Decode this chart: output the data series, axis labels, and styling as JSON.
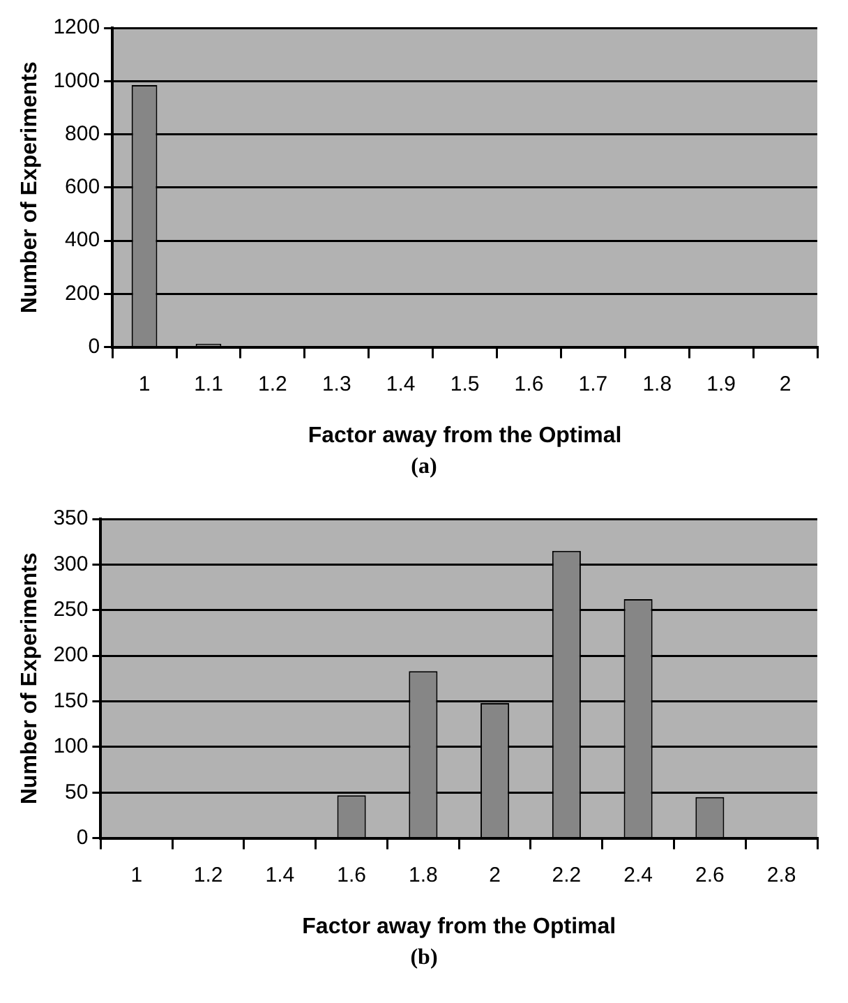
{
  "chart_data": [
    {
      "type": "bar",
      "xlabel": "Factor away from the Optimal",
      "ylabel": "Number of Experiments",
      "categories": [
        "1",
        "1.1",
        "1.2",
        "1.3",
        "1.4",
        "1.5",
        "1.6",
        "1.7",
        "1.8",
        "1.9",
        "2"
      ],
      "values": [
        985,
        12,
        0,
        0,
        0,
        0,
        0,
        0,
        0,
        0,
        0
      ],
      "color": "#868686",
      "ylim": [
        0,
        1200
      ],
      "yticks": [
        0,
        200,
        400,
        600,
        800,
        1000,
        1200
      ],
      "grid": "y",
      "legend": false,
      "annotations": [
        "(a)"
      ]
    },
    {
      "type": "bar",
      "xlabel": "Factor away from the Optimal",
      "ylabel": "Number of Experiments",
      "categories": [
        "1",
        "1.2",
        "1.4",
        "1.6",
        "1.8",
        "2",
        "2.2",
        "2.4",
        "2.6",
        "2.8"
      ],
      "values": [
        0,
        0,
        0,
        47,
        183,
        148,
        315,
        262,
        45,
        0
      ],
      "color": "#868686",
      "ylim": [
        0,
        350
      ],
      "yticks": [
        0,
        50,
        100,
        150,
        200,
        250,
        300,
        350
      ],
      "grid": "y",
      "legend": false,
      "annotations": [
        "(b)"
      ]
    }
  ]
}
